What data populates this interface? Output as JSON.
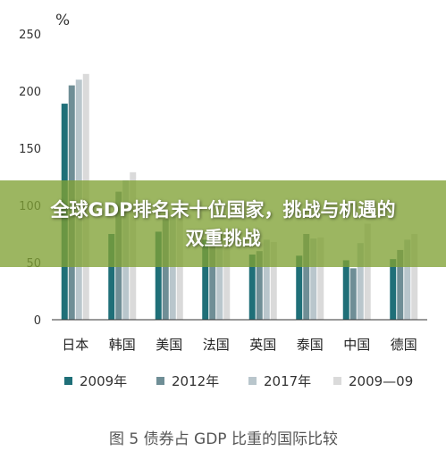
{
  "banner": {
    "title": "全球GDP排名末十位国家，挑战与机遇的双重挑战"
  },
  "caption": "图 5 债券占 GDP 比重的国际比较",
  "chart_data": {
    "type": "bar",
    "unit_label": "%",
    "ylim": [
      0,
      250
    ],
    "yticks": [
      0,
      50,
      100,
      150,
      200,
      250
    ],
    "grid": false,
    "legend_position": "bottom",
    "categories": [
      "日本",
      "韩国",
      "美国",
      "法国",
      "英国",
      "泰国",
      "中国",
      "德国"
    ],
    "series": [
      {
        "name": "2009年",
        "color": "#1f6f78",
        "values": [
          189,
          75,
          77,
          70,
          57,
          56,
          52,
          53
        ]
      },
      {
        "name": "2012年",
        "color": "#6f8e96",
        "values": [
          205,
          112,
          88,
          72,
          60,
          75,
          45,
          61
        ]
      },
      {
        "name": "2017年",
        "color": "#b9c6cc",
        "values": [
          210,
          122,
          90,
          74,
          70,
          71,
          67,
          70
        ]
      },
      {
        "name": "2009—09",
        "color": "#dadada",
        "values": [
          215,
          129,
          90,
          76,
          68,
          72,
          84,
          75
        ]
      }
    ]
  }
}
